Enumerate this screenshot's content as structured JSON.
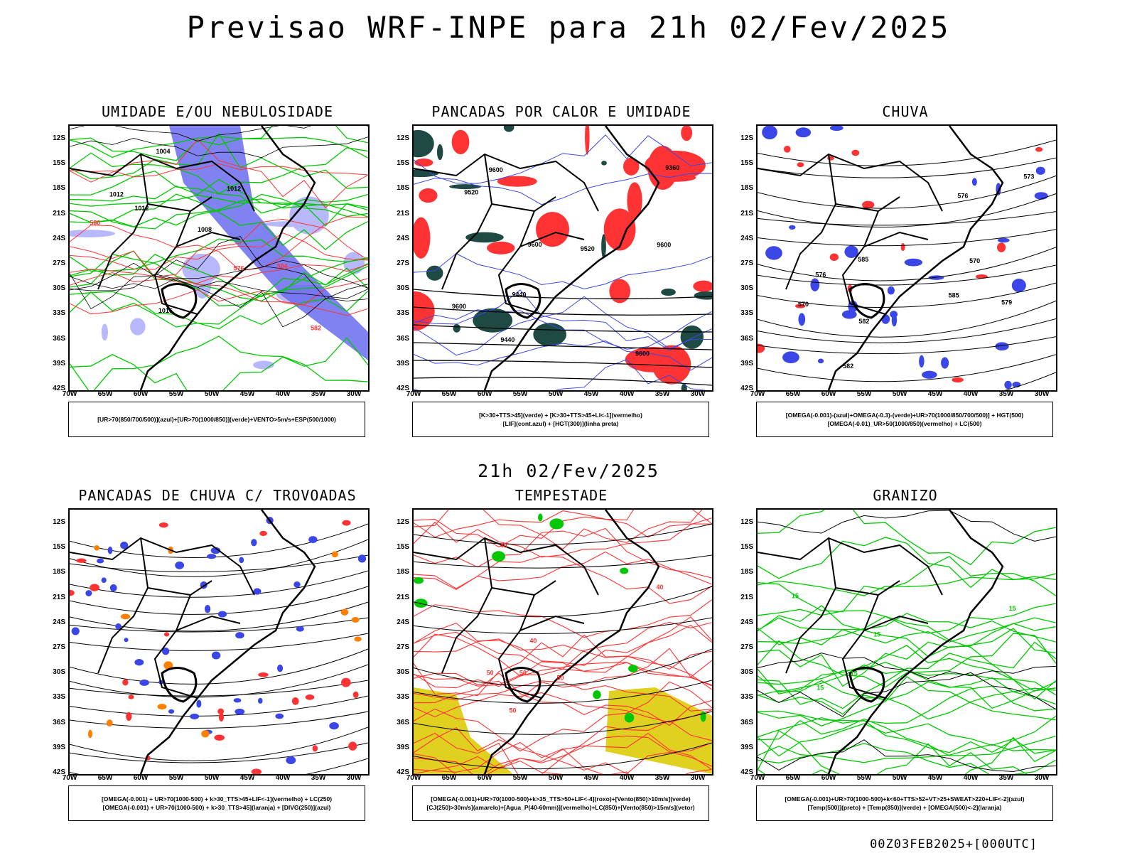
{
  "title": "Previsao WRF-INPE  para 21h 02/Fev/2025",
  "subtitle_date": "21h 02/Fev/2025",
  "footer": "00Z03FEB2025+[000UTC]",
  "lat_ticks": [
    "12S",
    "15S",
    "18S",
    "21S",
    "24S",
    "27S",
    "30S",
    "33S",
    "36S",
    "39S",
    "42S"
  ],
  "lon_ticks": [
    "70W",
    "65W",
    "60W",
    "55W",
    "50W",
    "45W",
    "40W",
    "35W",
    "30W"
  ],
  "colors": {
    "blue": "#3b46e6",
    "green": "#00c800",
    "red": "#ff3333",
    "darkgreen": "#1f4a44",
    "yellow": "#e0d020",
    "orange": "#ff8000"
  },
  "panels": [
    {
      "title": "UMIDADE E/OU NEBULOSIDADE",
      "legend": [
        "[UR>70(850/700/500)](azul)+[UR>70(1000/850)](verde)+VENTO>5m/s+ESP(500/1000)"
      ],
      "labels": [
        "1012",
        "1012",
        "1008",
        "1004",
        "1016",
        "1012",
        "580",
        "576",
        "582",
        "584"
      ]
    },
    {
      "title": "PANCADAS POR CALOR E UMIDADE",
      "legend": [
        "[K>30+TTS>45](verde) + [K>30+TTS>45+LI<-1](vermelho)",
        "[LIF](cont.azul) + [HGT(300)](linha preta)"
      ],
      "labels": [
        "9600",
        "9600",
        "9600",
        "9600",
        "9600",
        "9520",
        "9520",
        "9440",
        "9440",
        "9360"
      ]
    },
    {
      "title": "CHUVA",
      "legend": [
        "[OMEGA(-0.001)-(azul)+OMEGA(-0.3)-(verde)+UR>70(1000/850/700/500)] + HGT(500)",
        "[OMEGA(-0.01)_UR>50(1000/850)(vermelho) + LC(500)"
      ],
      "labels": [
        "582",
        "585",
        "585",
        "582",
        "579",
        "576",
        "576",
        "573",
        "570",
        "570"
      ]
    },
    {
      "title": "PANCADAS DE CHUVA C/ TROVOADAS",
      "legend": [
        "[OMEGA(-0.001) + UR>70(1000-500) + k>30_TTS>45+LIF<-1](vermelho) + LC(250)",
        "[OMEGA(-0.001) + UR>70(1000-500) + k>30_TTS>45](laranja) + [DIVG(250)](azul)"
      ],
      "labels": []
    },
    {
      "title": "TEMPESTADE",
      "legend": [
        "[OMEGA(-0.001)+UR>70(1000-500)+k>35_TTS>50+LIF<-4](roxo)+[Vento(850)>10m/s](verde)",
        "[CJ(250)>30m/s](amarelo)+[Agua_P(40-60mm)](vermelho)+LC(850)+[Vento(850)>15m/s](vetor)"
      ],
      "labels": [
        "50",
        "40",
        "50",
        "40",
        "50",
        "40",
        "50"
      ]
    },
    {
      "title": "GRANIZO",
      "legend": [
        "[OMEGA(-0.001)+UR>70(1000-500)+k<60+TTS>52+VT>25+SWEAT>220+LIF<-2](azul)",
        "[Temp(500)](preto) + [Temp(850)](verde) + [OMEGA(500)<-2](laranja)"
      ],
      "labels": [
        "15",
        "15",
        "15",
        "15",
        "15"
      ]
    }
  ]
}
